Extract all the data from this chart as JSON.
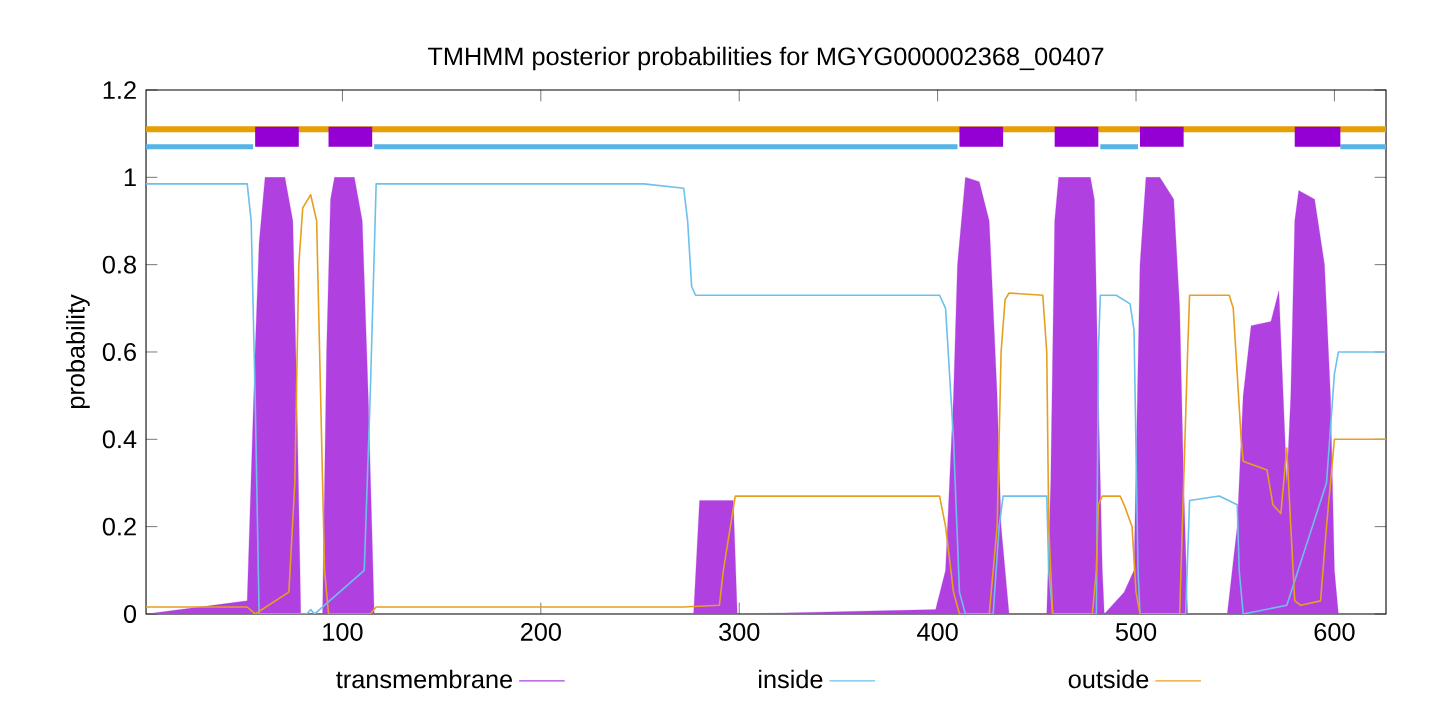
{
  "chart_data": {
    "type": "line",
    "title": "TMHMM posterior probabilities for MGYG000002368_00407",
    "ylabel": "probability",
    "xlim": [
      1,
      626
    ],
    "ylim": [
      0,
      1.2
    ],
    "xticks": [
      100,
      200,
      300,
      400,
      500,
      600
    ],
    "yticks": [
      0,
      0.2,
      0.4,
      0.6,
      0.8,
      1,
      1.2
    ],
    "legend": "bottom",
    "series": [
      {
        "name": "transmembrane",
        "type": "area",
        "color": "#b040e0",
        "x": [
          1,
          52,
          56,
          58,
          61,
          71,
          75,
          77,
          79,
          90,
          92,
          94,
          96,
          106,
          110,
          113,
          116,
          277,
          280,
          297,
          299,
          399,
          404,
          408,
          410,
          414,
          421,
          426,
          430,
          432,
          436,
          455,
          457,
          459,
          461,
          477,
          479,
          481,
          483,
          484,
          494,
          499,
          502,
          505,
          512,
          519,
          522,
          524,
          526,
          546,
          551,
          554,
          558,
          568,
          572,
          576,
          578,
          580,
          582,
          590,
          595,
          598,
          600,
          602,
          626
        ],
        "values": [
          0,
          0.03,
          0.6,
          0.85,
          1,
          1,
          0.9,
          0.5,
          0,
          0,
          0.6,
          0.95,
          1,
          1,
          0.9,
          0.5,
          0,
          0,
          0.26,
          0.26,
          0,
          0.01,
          0.1,
          0.5,
          0.8,
          1,
          0.99,
          0.9,
          0.5,
          0.2,
          0,
          0,
          0.3,
          0.9,
          1,
          1,
          0.95,
          0.5,
          0.1,
          0,
          0.05,
          0.1,
          0.8,
          1,
          1,
          0.95,
          0.7,
          0.3,
          0,
          0,
          0.2,
          0.5,
          0.66,
          0.67,
          0.74,
          0.3,
          0.5,
          0.9,
          0.97,
          0.95,
          0.8,
          0.5,
          0.1,
          0,
          0
        ]
      },
      {
        "name": "inside",
        "color": "#6cc0ec",
        "x": [
          1,
          52,
          54,
          56,
          58,
          82,
          84,
          86,
          111,
          114,
          117,
          252,
          272,
          274,
          276,
          278,
          401,
          404,
          408,
          411,
          414,
          428,
          431,
          433,
          455,
          456,
          458,
          480,
          481,
          482,
          490,
          497,
          499,
          501,
          502,
          525,
          527,
          542,
          551,
          552,
          554,
          576,
          596,
          600,
          602,
          626
        ],
        "values": [
          0.985,
          0.985,
          0.9,
          0.5,
          0,
          0,
          0.01,
          0,
          0.1,
          0.5,
          0.985,
          0.985,
          0.975,
          0.9,
          0.75,
          0.73,
          0.73,
          0.7,
          0.4,
          0.05,
          0,
          0,
          0.2,
          0.27,
          0.27,
          0.1,
          0,
          0,
          0.6,
          0.73,
          0.73,
          0.71,
          0.65,
          0.1,
          0,
          0,
          0.26,
          0.27,
          0.25,
          0.1,
          0,
          0.02,
          0.3,
          0.55,
          0.6,
          0.6
        ]
      },
      {
        "name": "outside",
        "color": "#e6a020",
        "x": [
          1,
          52,
          56,
          73,
          76,
          78,
          80,
          84,
          87,
          89,
          91,
          93,
          114,
          117,
          272,
          290,
          292,
          298,
          401,
          404,
          408,
          411,
          426,
          430,
          432,
          434,
          436,
          453,
          455,
          456,
          458,
          478,
          480,
          481,
          483,
          492,
          494,
          498,
          500,
          502,
          522,
          526,
          527,
          547,
          549,
          553,
          554,
          566,
          569,
          573,
          576,
          578,
          580,
          583,
          593,
          596,
          600,
          626
        ],
        "values": [
          0.016,
          0.016,
          0,
          0.05,
          0.3,
          0.8,
          0.93,
          0.96,
          0.9,
          0.5,
          0.1,
          0,
          0,
          0.016,
          0.016,
          0.02,
          0.1,
          0.27,
          0.27,
          0.2,
          0.05,
          0,
          0,
          0.2,
          0.6,
          0.72,
          0.735,
          0.73,
          0.6,
          0.2,
          0,
          0,
          0.1,
          0.25,
          0.27,
          0.27,
          0.25,
          0.2,
          0.05,
          0,
          0,
          0.6,
          0.73,
          0.73,
          0.7,
          0.4,
          0.35,
          0.33,
          0.25,
          0.23,
          0.38,
          0.2,
          0.03,
          0.02,
          0.03,
          0.2,
          0.4,
          0.4
        ]
      },
      {
        "color": "#e69f00",
        "x": [
          1,
          626
        ],
        "values": [
          1.11,
          1.11
        ]
      },
      {
        "color": "#56b4e9",
        "x": [
          1,
          55,
          56,
          116,
          410,
          411,
          482,
          501,
          502,
          603,
          626
        ],
        "values": [
          1.07,
          1.07,
          null,
          1.07,
          1.07,
          null,
          1.07,
          1.07,
          null,
          1.07,
          1.07
        ]
      },
      {
        "color": "#9400d3",
        "x": [
          56,
          78,
          79,
          93,
          115,
          116,
          411,
          433,
          434,
          459,
          481,
          482,
          502,
          524,
          525,
          580,
          603
        ],
        "values": [
          1.093,
          1.093,
          null,
          1.093,
          1.093,
          null,
          1.093,
          1.093,
          null,
          1.093,
          1.093,
          null,
          1.093,
          1.093,
          null,
          1.093,
          1.093
        ]
      }
    ]
  }
}
